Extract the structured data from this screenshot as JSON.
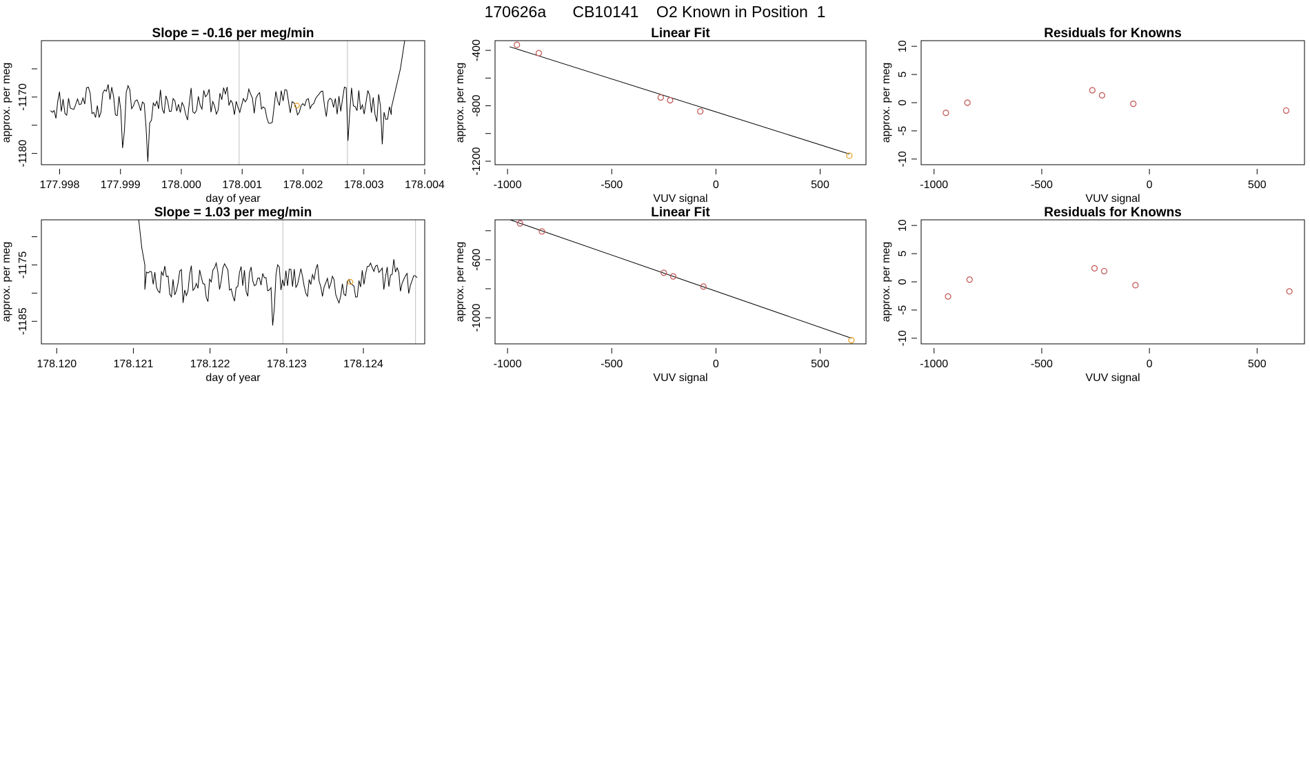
{
  "suptitle": "170626a      CB10141    O2 Known in Position  1",
  "colors": {
    "trace": "#000000",
    "point": "#c0504d",
    "marker": "#e6a020",
    "vline": "#bfbfbf",
    "axis": "#000000"
  },
  "chart_data": [
    {
      "id": "ts1",
      "type": "line",
      "title": "Slope =  -0.16  per meg/min",
      "xlabel": "day of year",
      "ylabel": "approx. per meg",
      "xlim": [
        177.9977,
        178.004
      ],
      "ylim": [
        -1182,
        -1160
      ],
      "xticks": [
        177.998,
        177.999,
        178.0,
        178.001,
        178.002,
        178.003,
        178.004
      ],
      "xtick_labels": [
        "177.998",
        "177.999",
        "178.000",
        "178.001",
        "178.002",
        "178.003",
        "178.004"
      ],
      "yticks": [
        -1180,
        -1175,
        -1170,
        -1165
      ],
      "ytick_labels": [
        "-1180",
        "",
        "-1170",
        ""
      ],
      "vlines": [
        178.00095,
        178.00273
      ],
      "marker": {
        "x": 178.0019,
        "y": -1171.5
      },
      "trace": {
        "x_start": 177.99785,
        "x_end": 178.00345,
        "n": 190,
        "mean": -1171,
        "amplitude": 2.6,
        "seed": 11,
        "spikes": [
          [
            177.99845,
            6
          ],
          [
            177.99885,
            5
          ],
          [
            177.99905,
            -11
          ],
          [
            177.99945,
            -11
          ],
          [
            177.99975,
            5
          ],
          [
            178.00275,
            -8
          ],
          [
            178.0033,
            -6
          ]
        ],
        "tail": [
          [
            178.00345,
            -1172
          ],
          [
            178.0036,
            -1165
          ],
          [
            178.0037,
            -1158
          ]
        ]
      }
    },
    {
      "id": "fit1",
      "type": "scatter",
      "title": "Linear Fit",
      "xlabel": "VUV signal",
      "ylabel": "approx. per meg",
      "xlim": [
        -1060,
        720
      ],
      "ylim": [
        -1225,
        -330
      ],
      "xticks": [
        -1000,
        -500,
        0,
        500
      ],
      "xtick_labels": [
        "-1000",
        "-500",
        "0",
        "500"
      ],
      "yticks": [
        -1200,
        -1000,
        -800,
        -600,
        -400
      ],
      "ytick_labels": [
        "-1200",
        "",
        "-800",
        "",
        "-400"
      ],
      "points": {
        "x": [
          -955,
          -850,
          -265,
          -220,
          -75,
          640
        ],
        "y": [
          -360,
          -420,
          -740,
          -760,
          -840,
          -1160
        ]
      },
      "fit": {
        "x0": -990,
        "x1": 640,
        "slope": -0.475,
        "intercept": -844
      }
    },
    {
      "id": "res1",
      "type": "scatter",
      "title": "Residuals for Knowns",
      "xlabel": "VUV signal",
      "ylabel": "approx. per meg",
      "xlim": [
        -1060,
        720
      ],
      "ylim": [
        -11,
        11
      ],
      "xticks": [
        -1000,
        -500,
        0,
        500
      ],
      "xtick_labels": [
        "-1000",
        "-500",
        "0",
        "500"
      ],
      "yticks": [
        -10,
        -5,
        0,
        5,
        10
      ],
      "ytick_labels": [
        "-10",
        "-5",
        "0",
        "5",
        "10"
      ],
      "points": {
        "x": [
          -945,
          -845,
          -265,
          -220,
          -75,
          635
        ],
        "y": [
          -1.8,
          0,
          2.2,
          1.3,
          -0.2,
          -1.4
        ]
      }
    },
    {
      "id": "ts2",
      "type": "line",
      "title": "Slope =  1.03  per meg/min",
      "xlabel": "day of year",
      "ylabel": "approx. per meg",
      "xlim": [
        178.1198,
        178.1248
      ],
      "ylim": [
        -1189,
        -1167
      ],
      "xticks": [
        178.12,
        178.121,
        178.122,
        178.123,
        178.124
      ],
      "xtick_labels": [
        "178.120",
        "178.121",
        "178.122",
        "178.123",
        "178.124"
      ],
      "yticks": [
        -1185,
        -1180,
        -1175,
        -1170
      ],
      "ytick_labels": [
        "-1185",
        "",
        "-1175",
        ""
      ],
      "vlines": [
        178.12295,
        178.12468
      ],
      "marker": {
        "x": 178.12383,
        "y": -1178.0
      },
      "trace": {
        "x_start": 178.12115,
        "x_end": 178.1247,
        "n": 165,
        "mean": -1178,
        "amplitude": 2.6,
        "seed": 29,
        "spikes": [
          [
            178.12165,
            -4
          ],
          [
            178.12282,
            -6
          ],
          [
            178.1244,
            3
          ]
        ],
        "head": [
          [
            178.12107,
            -1167
          ],
          [
            178.12111,
            -1172
          ],
          [
            178.12115,
            -1175
          ]
        ]
      }
    },
    {
      "id": "fit2",
      "type": "scatter",
      "title": "Linear Fit",
      "xlabel": "VUV signal",
      "ylabel": "approx. per meg",
      "xlim": [
        -1060,
        720
      ],
      "ylim": [
        -1180,
        -325
      ],
      "xticks": [
        -1000,
        -500,
        0,
        500
      ],
      "xtick_labels": [
        "-1000",
        "-500",
        "0",
        "500"
      ],
      "yticks": [
        -1000,
        -800,
        -600,
        -400
      ],
      "ytick_labels": [
        "-1000",
        "",
        "-600",
        ""
      ],
      "points": {
        "x": [
          -940,
          -835,
          -250,
          -205,
          -60,
          650
        ],
        "y": [
          -350,
          -405,
          -690,
          -715,
          -785,
          -1155
        ]
      },
      "fit": {
        "x0": -990,
        "x1": 650,
        "slope": -0.498,
        "intercept": -817
      }
    },
    {
      "id": "res2",
      "type": "scatter",
      "title": "Residuals for Knowns",
      "xlabel": "VUV signal",
      "ylabel": "approx. per meg",
      "xlim": [
        -1060,
        720
      ],
      "ylim": [
        -11,
        11
      ],
      "xticks": [
        -1000,
        -500,
        0,
        500
      ],
      "xtick_labels": [
        "-1000",
        "-500",
        "0",
        "500"
      ],
      "yticks": [
        -10,
        -5,
        0,
        5,
        10
      ],
      "ytick_labels": [
        "-10",
        "-5",
        "0",
        "5",
        "10"
      ],
      "points": {
        "x": [
          -935,
          -835,
          -255,
          -210,
          -65,
          650
        ],
        "y": [
          -2.6,
          0.4,
          2.4,
          1.9,
          -0.6,
          -1.7
        ]
      }
    }
  ]
}
